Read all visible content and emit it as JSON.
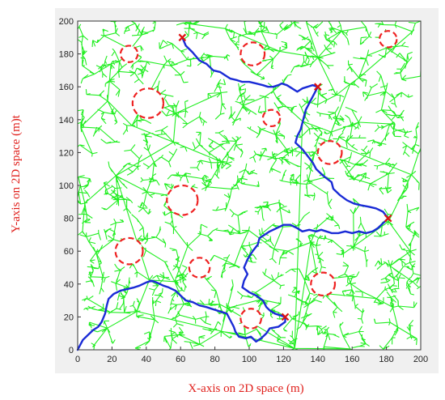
{
  "chart_data": {
    "type": "scatter",
    "title": "",
    "xlabel": "X-axis on 2D space (m)",
    "ylabel": "Y-axis on 2D space (m)t",
    "xlim": [
      0,
      200
    ],
    "ylim": [
      0,
      200
    ],
    "xticks": [
      "0",
      "20",
      "40",
      "60",
      "80",
      "100",
      "120",
      "140",
      "160",
      "180",
      "200"
    ],
    "yticks": [
      "0",
      "20",
      "40",
      "60",
      "80",
      "100",
      "120",
      "140",
      "160",
      "180",
      "200"
    ],
    "grid": false,
    "colors": {
      "tree": "#22ee22",
      "path": "#1a2bd6",
      "obstacle": "#ee2222",
      "waypoint": "#dd1111",
      "label": "#e0201c",
      "frame_bg": "#f0f0f0"
    },
    "obstacles": [
      {
        "cx": 30,
        "cy": 180,
        "r": 5
      },
      {
        "cx": 181,
        "cy": 189,
        "r": 5
      },
      {
        "cx": 102,
        "cy": 180,
        "r": 7
      },
      {
        "cx": 41,
        "cy": 150,
        "r": 9
      },
      {
        "cx": 113,
        "cy": 141,
        "r": 5
      },
      {
        "cx": 147,
        "cy": 120,
        "r": 7
      },
      {
        "cx": 61,
        "cy": 91,
        "r": 9
      },
      {
        "cx": 30,
        "cy": 60,
        "r": 8
      },
      {
        "cx": 71,
        "cy": 50,
        "r": 6
      },
      {
        "cx": 143,
        "cy": 40,
        "r": 7
      },
      {
        "cx": 101,
        "cy": 19,
        "r": 6
      }
    ],
    "waypoints": [
      {
        "x": 61,
        "y": 190
      },
      {
        "x": 140,
        "y": 160
      },
      {
        "x": 181,
        "y": 80
      },
      {
        "x": 121,
        "y": 20
      }
    ],
    "path": [
      [
        61,
        190
      ],
      [
        63,
        185
      ],
      [
        67,
        181
      ],
      [
        71,
        176
      ],
      [
        75,
        174
      ],
      [
        79,
        170
      ],
      [
        83,
        169
      ],
      [
        86,
        167
      ],
      [
        89,
        165
      ],
      [
        93,
        164
      ],
      [
        96,
        163
      ],
      [
        100,
        163
      ],
      [
        104,
        162
      ],
      [
        108,
        161
      ],
      [
        111,
        160
      ],
      [
        114,
        160
      ],
      [
        117,
        161
      ],
      [
        119,
        162
      ],
      [
        122,
        161
      ],
      [
        125,
        159
      ],
      [
        128,
        157
      ],
      [
        131,
        159
      ],
      [
        134,
        160
      ],
      [
        137,
        161
      ],
      [
        140,
        160
      ],
      [
        138,
        156
      ],
      [
        136,
        152
      ],
      [
        133,
        146
      ],
      [
        132,
        142
      ],
      [
        131,
        138
      ],
      [
        130,
        134
      ],
      [
        128,
        130
      ],
      [
        127,
        126
      ],
      [
        131,
        122
      ],
      [
        134,
        118
      ],
      [
        137,
        114
      ],
      [
        139,
        110
      ],
      [
        143,
        106
      ],
      [
        148,
        102
      ],
      [
        149,
        98
      ],
      [
        153,
        94
      ],
      [
        157,
        91
      ],
      [
        161,
        89
      ],
      [
        165,
        88
      ],
      [
        170,
        87
      ],
      [
        174,
        86
      ],
      [
        178,
        84
      ],
      [
        181,
        80
      ],
      [
        178,
        77
      ],
      [
        175,
        74
      ],
      [
        172,
        72
      ],
      [
        168,
        71
      ],
      [
        164,
        72
      ],
      [
        160,
        71
      ],
      [
        156,
        72
      ],
      [
        152,
        71
      ],
      [
        148,
        71
      ],
      [
        145,
        72
      ],
      [
        142,
        73
      ],
      [
        139,
        72
      ],
      [
        135,
        73
      ],
      [
        131,
        72
      ],
      [
        128,
        74
      ],
      [
        124,
        76
      ],
      [
        120,
        76
      ],
      [
        116,
        74
      ],
      [
        112,
        72
      ],
      [
        109,
        70
      ],
      [
        106,
        68
      ],
      [
        105,
        64
      ],
      [
        102,
        60
      ],
      [
        99,
        55
      ],
      [
        97,
        50
      ],
      [
        99,
        46
      ],
      [
        97,
        42
      ],
      [
        96,
        38
      ],
      [
        100,
        35
      ],
      [
        104,
        33
      ],
      [
        108,
        30
      ],
      [
        110,
        26
      ],
      [
        112,
        24
      ],
      [
        115,
        22
      ],
      [
        118,
        21
      ],
      [
        121,
        20
      ],
      [
        121,
        17
      ],
      [
        117,
        14
      ],
      [
        112,
        13
      ],
      [
        110,
        10
      ],
      [
        107,
        7
      ],
      [
        104,
        5
      ],
      [
        101,
        8
      ],
      [
        98,
        7
      ],
      [
        94,
        8
      ],
      [
        92,
        11
      ],
      [
        91,
        14
      ],
      [
        89,
        18
      ],
      [
        87,
        22
      ],
      [
        84,
        23
      ],
      [
        81,
        24
      ],
      [
        78,
        25
      ],
      [
        75,
        26
      ],
      [
        71,
        27
      ],
      [
        67,
        29
      ],
      [
        63,
        30
      ],
      [
        60,
        33
      ],
      [
        57,
        36
      ],
      [
        53,
        38
      ],
      [
        50,
        39
      ],
      [
        46,
        41
      ],
      [
        43,
        42
      ],
      [
        40,
        41
      ],
      [
        36,
        39
      ],
      [
        33,
        38
      ],
      [
        29,
        37
      ],
      [
        25,
        36
      ],
      [
        21,
        34
      ],
      [
        18,
        31
      ],
      [
        17,
        27
      ],
      [
        16,
        22
      ],
      [
        14,
        17
      ],
      [
        12,
        14
      ],
      [
        9,
        12
      ],
      [
        6,
        9
      ],
      [
        3,
        6
      ],
      [
        1,
        2
      ],
      [
        0,
        0
      ]
    ]
  }
}
